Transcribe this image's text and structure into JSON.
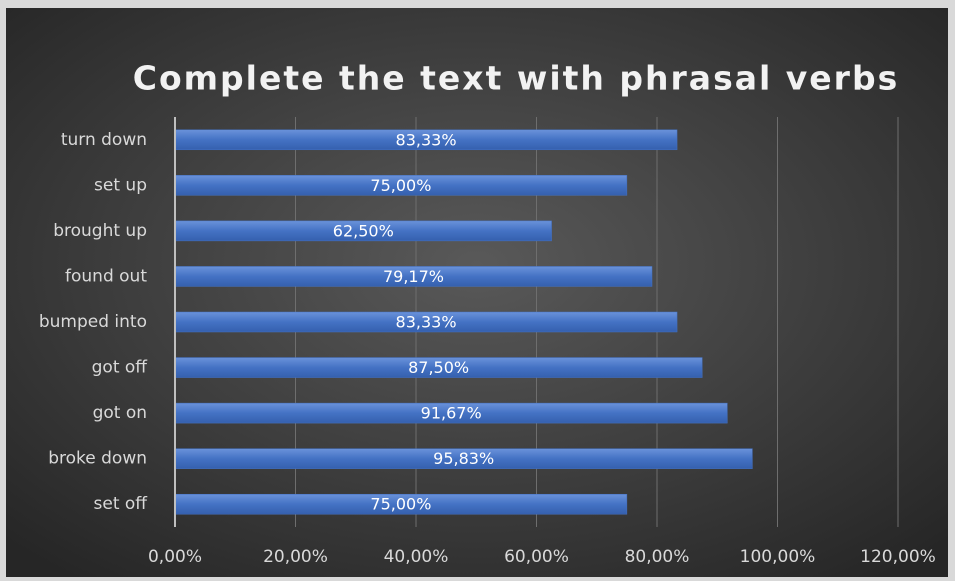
{
  "chart_data": {
    "type": "barh",
    "title": "Complete the text with phrasal verbs",
    "categories": [
      "turn down",
      "set up",
      "brought up",
      "found out",
      "bumped into",
      "got off",
      "got on",
      "broke down",
      "set off"
    ],
    "values": [
      83.33,
      75.0,
      62.5,
      79.17,
      83.33,
      87.5,
      91.67,
      95.83,
      75.0
    ],
    "value_labels": [
      "83,33%",
      "75,00%",
      "62,50%",
      "79,17%",
      "83,33%",
      "87,50%",
      "91,67%",
      "95,83%",
      "75,00%"
    ],
    "color": "#4472c4",
    "xlim": [
      0,
      120
    ],
    "xticks": [
      {
        "value": 0,
        "label": "0,00%"
      },
      {
        "value": 20,
        "label": "20,00%"
      },
      {
        "value": 40,
        "label": "40,00%"
      },
      {
        "value": 60,
        "label": "60,00%"
      },
      {
        "value": 80,
        "label": "80,00%"
      },
      {
        "value": 100,
        "label": "100,00%"
      },
      {
        "value": 120,
        "label": "120,00%"
      }
    ],
    "grid": true
  }
}
